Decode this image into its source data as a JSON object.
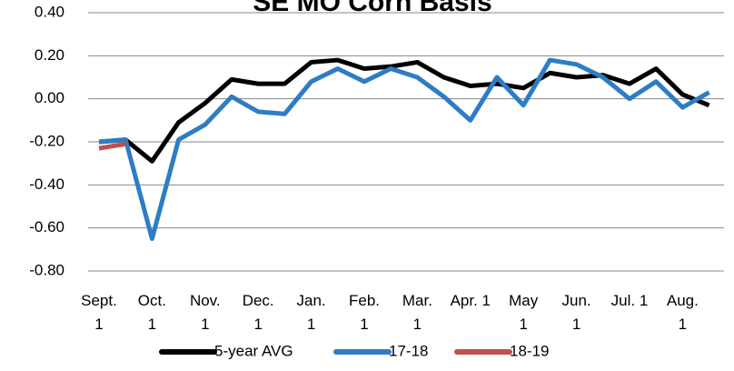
{
  "chart_data": {
    "type": "line",
    "title": "SE MO Corn Basis",
    "categories": [
      "Sept. 1",
      null,
      "Oct. 1",
      null,
      "Nov. 1",
      null,
      "Dec. 1",
      null,
      "Jan. 1",
      null,
      "Feb. 1",
      null,
      "Mar. 1",
      null,
      "Apr. 1",
      null,
      "May 1",
      null,
      "Jun. 1",
      null,
      "Jul. 1",
      null,
      "Aug. 1",
      null
    ],
    "series": [
      {
        "name": "5-year AVG",
        "color": "#000000",
        "values": [
          -0.2,
          -0.19,
          -0.29,
          -0.11,
          -0.02,
          0.09,
          0.07,
          0.07,
          0.17,
          0.18,
          0.14,
          0.15,
          0.17,
          0.1,
          0.06,
          0.07,
          0.05,
          0.12,
          0.1,
          0.11,
          0.07,
          0.14,
          0.02,
          -0.03
        ]
      },
      {
        "name": "17-18",
        "color": "#2e7dc4",
        "values": [
          -0.2,
          -0.19,
          -0.65,
          -0.19,
          -0.12,
          0.01,
          -0.06,
          -0.07,
          0.08,
          0.14,
          0.08,
          0.14,
          0.1,
          0.01,
          -0.1,
          0.1,
          -0.03,
          0.18,
          0.16,
          0.1,
          0.0,
          0.08,
          -0.04,
          0.03
        ]
      },
      {
        "name": "18-19",
        "color": "#c0504d",
        "values": [
          -0.23,
          -0.21,
          null,
          null,
          null,
          null,
          null,
          null,
          null,
          null,
          null,
          null,
          null,
          null,
          null,
          null,
          null,
          null,
          null,
          null,
          null,
          null,
          null,
          null
        ]
      }
    ],
    "ylim": [
      -0.8,
      0.4
    ],
    "yticks": [
      {
        "value": -0.8,
        "label": "-0.80"
      },
      {
        "value": -0.6,
        "label": "-0.60"
      },
      {
        "value": -0.4,
        "label": "-0.40"
      },
      {
        "value": -0.2,
        "label": "-0.20"
      },
      {
        "value": 0,
        "label": "0.00"
      },
      {
        "value": 0.2,
        "label": "0.20"
      },
      {
        "value": 0.4,
        "label": "0.40"
      }
    ],
    "grid": true,
    "legend": "bottom"
  }
}
